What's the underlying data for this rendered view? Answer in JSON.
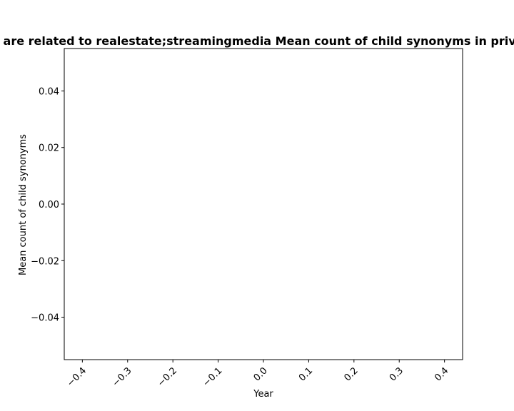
{
  "chart_data": {
    "type": "line",
    "title": "are related to realestate;streamingmedia Mean count of child synonyms in priva",
    "xlabel": "Year",
    "ylabel": "Mean count of child synonyms",
    "xlim": [
      -0.44,
      0.44
    ],
    "ylim": [
      -0.055,
      0.055
    ],
    "x_ticks": [
      -0.4,
      -0.3,
      -0.2,
      -0.1,
      0.0,
      0.1,
      0.2,
      0.3,
      0.4
    ],
    "x_tick_labels": [
      "−0.4",
      "−0.3",
      "−0.2",
      "−0.1",
      "0.0",
      "0.1",
      "0.2",
      "0.3",
      "0.4"
    ],
    "y_ticks": [
      0.04,
      0.02,
      0.0,
      -0.02,
      -0.04
    ],
    "y_tick_labels": [
      "0.04",
      "0.02",
      "0.00",
      "−0.02",
      "−0.04"
    ],
    "series": [],
    "grid": false,
    "legend": "none"
  }
}
